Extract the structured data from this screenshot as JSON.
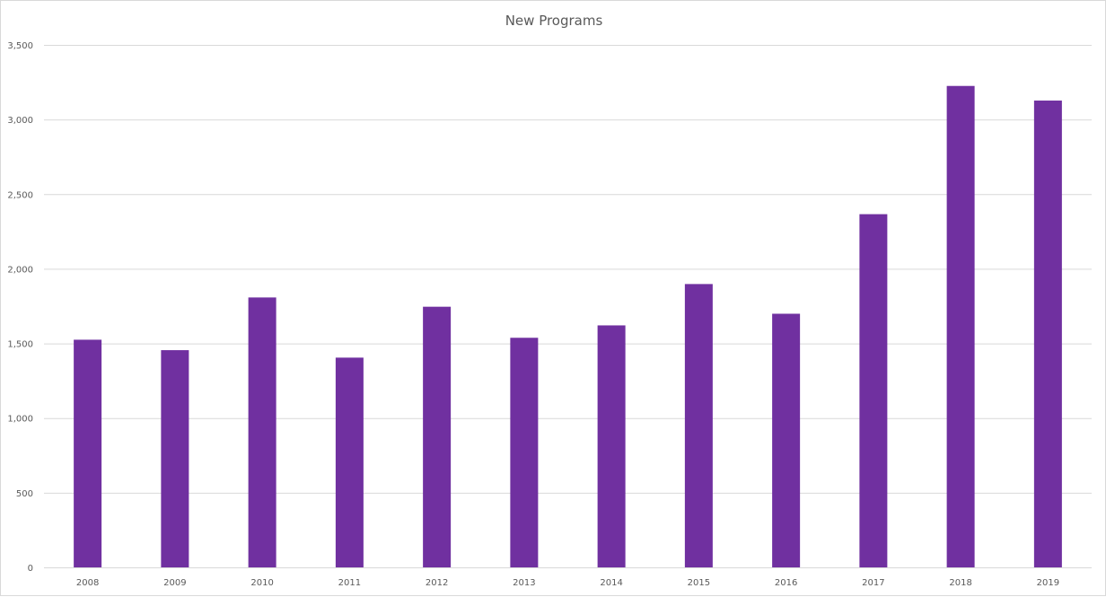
{
  "chart_data": {
    "type": "bar",
    "title": "New Programs",
    "xlabel": "",
    "ylabel": "",
    "categories": [
      "2008",
      "2009",
      "2010",
      "2011",
      "2012",
      "2013",
      "2014",
      "2015",
      "2016",
      "2017",
      "2018",
      "2019"
    ],
    "values": [
      1525,
      1455,
      1808,
      1405,
      1746,
      1538,
      1621,
      1898,
      1699,
      2366,
      3225,
      3127
    ],
    "ylim": [
      0,
      3500
    ],
    "yticks": [
      0,
      500,
      1000,
      1500,
      2000,
      2500,
      3000,
      3500
    ],
    "ytick_labels": [
      "0",
      "500",
      "1,000",
      "1,500",
      "2,000",
      "2,500",
      "3,000",
      "3,500"
    ],
    "grid": true,
    "legend": "none",
    "colors": {
      "bar": "#7030A0",
      "grid": "#d9d9d9",
      "text": "#595959"
    }
  }
}
